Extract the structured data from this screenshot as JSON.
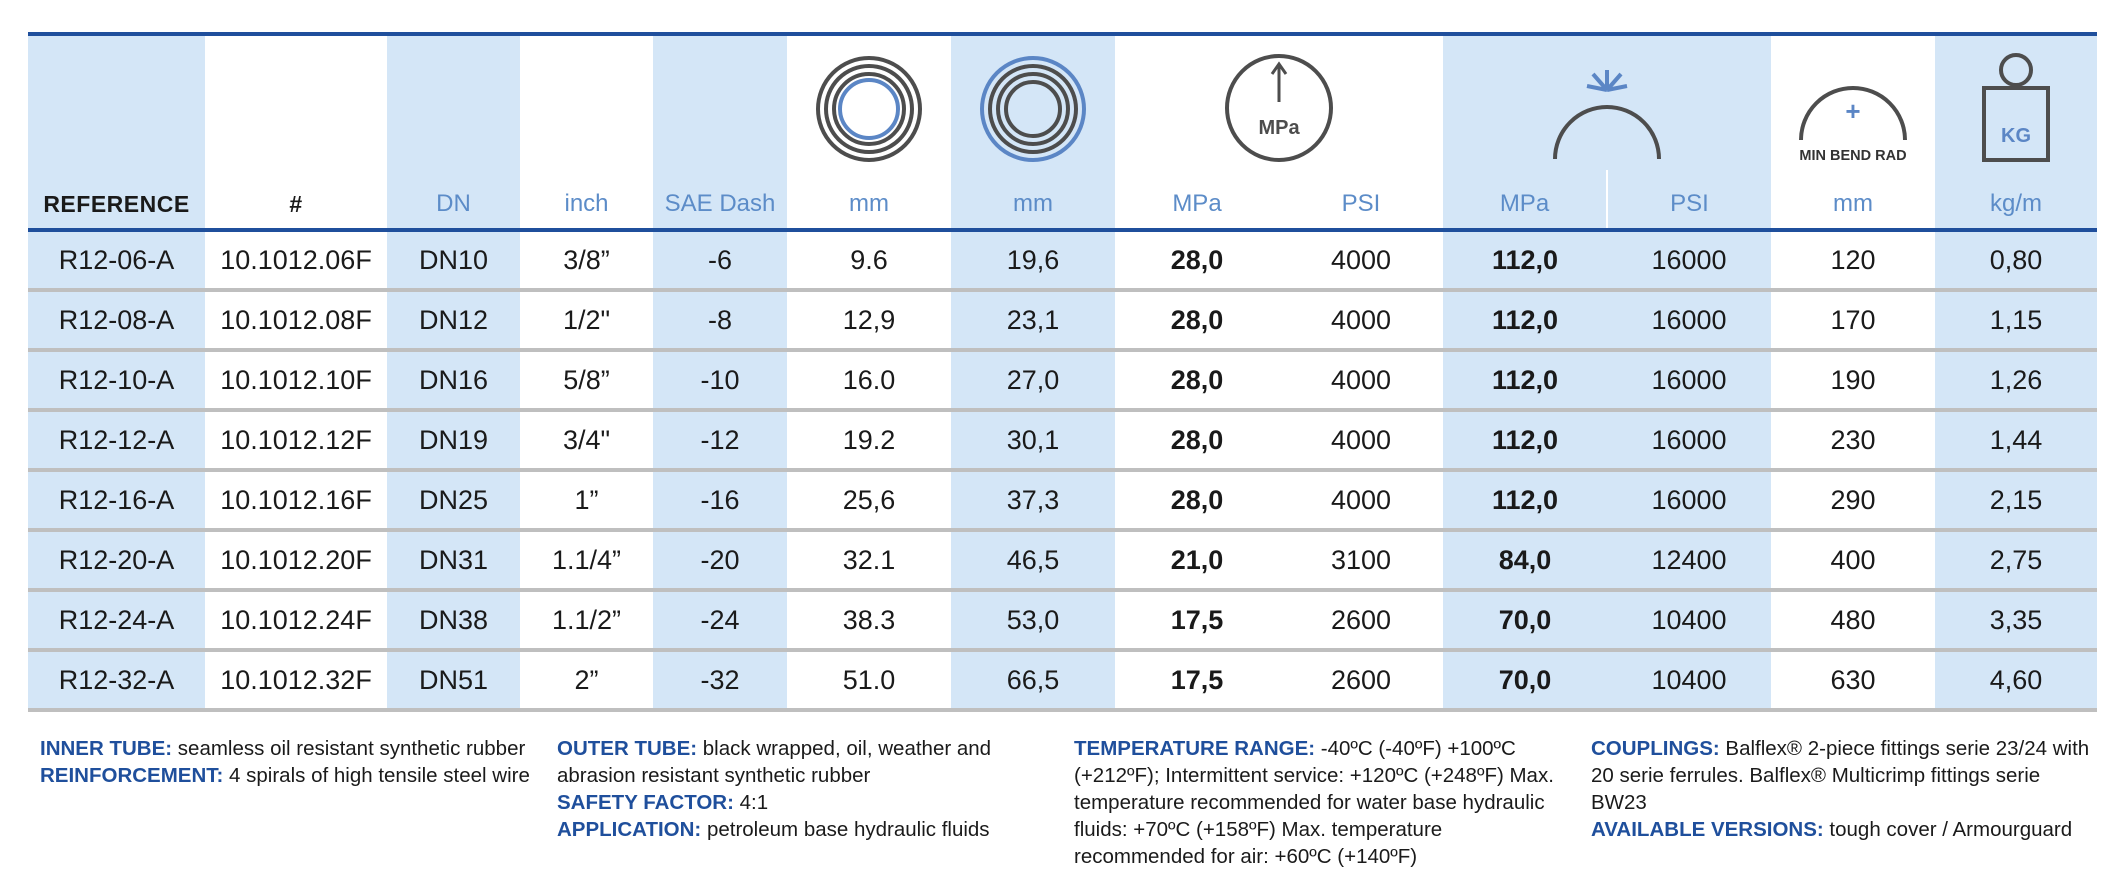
{
  "header": {
    "labels": {
      "reference": "REFERENCE",
      "number": "#",
      "dn": "DN",
      "inch": "inch",
      "sae": "SAE Dash",
      "id_mm": "mm",
      "od_mm": "mm",
      "wp_mpa": "MPa",
      "wp_psi": "PSI",
      "bp_mpa": "MPa",
      "bp_psi": "PSI",
      "bend_mm": "mm",
      "weight": "kg/m"
    },
    "icons": {
      "inner_diameter": "inner-diameter-icon",
      "outer_diameter": "outer-diameter-icon",
      "working_pressure": "working-pressure-icon",
      "burst_pressure": "burst-pressure-icon",
      "bend_radius": "min-bend-radius-icon",
      "weight": "weight-icon"
    },
    "icon_text": {
      "pressure": "MPa",
      "bend": "MIN BEND RAD",
      "bend_plus": "+",
      "weight": "KG"
    }
  },
  "rows": [
    {
      "ref": "R12-06-A",
      "num": "10.1012.06F",
      "dn": "DN10",
      "inch": "3/8”",
      "sae": "-6",
      "id": "9.6",
      "od": "19,6",
      "wp_mpa": "28,0",
      "wp_psi": "4000",
      "bp_mpa": "112,0",
      "bp_psi": "16000",
      "bend": "120",
      "kg": "0,80"
    },
    {
      "ref": "R12-08-A",
      "num": "10.1012.08F",
      "dn": "DN12",
      "inch": "1/2\"",
      "sae": "-8",
      "id": "12,9",
      "od": "23,1",
      "wp_mpa": "28,0",
      "wp_psi": "4000",
      "bp_mpa": "112,0",
      "bp_psi": "16000",
      "bend": "170",
      "kg": "1,15"
    },
    {
      "ref": "R12-10-A",
      "num": "10.1012.10F",
      "dn": "DN16",
      "inch": "5/8”",
      "sae": "-10",
      "id": "16.0",
      "od": "27,0",
      "wp_mpa": "28,0",
      "wp_psi": "4000",
      "bp_mpa": "112,0",
      "bp_psi": "16000",
      "bend": "190",
      "kg": "1,26"
    },
    {
      "ref": "R12-12-A",
      "num": "10.1012.12F",
      "dn": "DN19",
      "inch": "3/4\"",
      "sae": "-12",
      "id": "19.2",
      "od": "30,1",
      "wp_mpa": "28,0",
      "wp_psi": "4000",
      "bp_mpa": "112,0",
      "bp_psi": "16000",
      "bend": "230",
      "kg": "1,44"
    },
    {
      "ref": "R12-16-A",
      "num": "10.1012.16F",
      "dn": "DN25",
      "inch": "1”",
      "sae": "-16",
      "id": "25,6",
      "od": "37,3",
      "wp_mpa": "28,0",
      "wp_psi": "4000",
      "bp_mpa": "112,0",
      "bp_psi": "16000",
      "bend": "290",
      "kg": "2,15"
    },
    {
      "ref": "R12-20-A",
      "num": "10.1012.20F",
      "dn": "DN31",
      "inch": "1.1/4”",
      "sae": "-20",
      "id": "32.1",
      "od": "46,5",
      "wp_mpa": "21,0",
      "wp_psi": "3100",
      "bp_mpa": "84,0",
      "bp_psi": "12400",
      "bend": "400",
      "kg": "2,75"
    },
    {
      "ref": "R12-24-A",
      "num": "10.1012.24F",
      "dn": "DN38",
      "inch": "1.1/2”",
      "sae": "-24",
      "id": "38.3",
      "od": "53,0",
      "wp_mpa": "17,5",
      "wp_psi": "2600",
      "bp_mpa": "70,0",
      "bp_psi": "10400",
      "bend": "480",
      "kg": "3,35"
    },
    {
      "ref": "R12-32-A",
      "num": "10.1012.32F",
      "dn": "DN51",
      "inch": "2”",
      "sae": "-32",
      "id": "51.0",
      "od": "66,5",
      "wp_mpa": "17,5",
      "wp_psi": "2600",
      "bp_mpa": "70,0",
      "bp_psi": "10400",
      "bend": "630",
      "kg": "4,60"
    }
  ],
  "notes": {
    "inner_tube": {
      "key": "INNER TUBE:",
      "value": " seamless oil resistant synthetic rubber"
    },
    "reinforcement": {
      "key": "REINFORCEMENT:",
      "value": " 4 spirals of high tensile steel wire"
    },
    "outer_tube": {
      "key": "OUTER TUBE:",
      "value": " black wrapped, oil, weather and abrasion resistant synthetic rubber"
    },
    "safety_factor": {
      "key": "SAFETY FACTOR:",
      "value": " 4:1"
    },
    "application": {
      "key": "APPLICATION:",
      "value": " petroleum base hydraulic fluids"
    },
    "temperature": {
      "key": "TEMPERATURE RANGE:",
      "value": " -40ºC (-40ºF) +100ºC (+212ºF); Intermittent service: +120ºC (+248ºF) Max. temperature recommended for water base hydraulic fluids: +70ºC (+158ºF) Max. temperature recommended for air: +60ºC (+140ºF)"
    },
    "couplings": {
      "key": "COUPLINGS:",
      "value": " Balflex® 2-piece fittings serie 23/24 with 20 serie ferrules. Balflex® Multicrimp fittings serie BW23"
    },
    "versions": {
      "key": "AVAILABLE VERSIONS:",
      "value": " tough cover / Armourguard"
    }
  },
  "colors": {
    "accent": "#1f4f9c",
    "shade": "#d4e6f7",
    "unit_text": "#5c8cc8",
    "row_rule": "#bfbfbf",
    "icon_stroke": "#4d4d4d",
    "icon_blue": "#5b86c5"
  }
}
